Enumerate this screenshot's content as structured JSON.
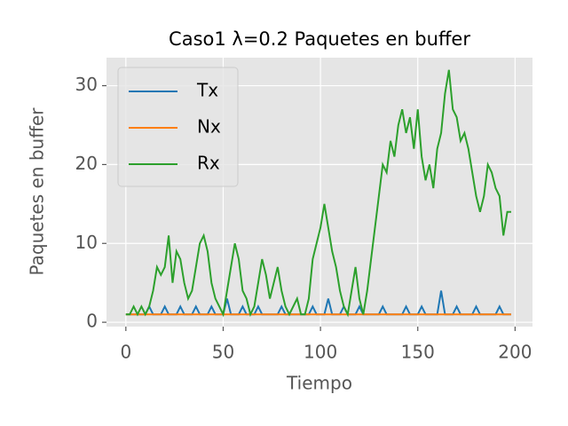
{
  "chart_data": {
    "type": "line",
    "title": "Caso1 λ=0.2 Paquetes en buffer",
    "xlabel": "Tiempo",
    "ylabel": "Paquetes en buffer",
    "x": [
      0,
      2,
      4,
      6,
      8,
      10,
      12,
      14,
      16,
      18,
      20,
      22,
      24,
      26,
      28,
      30,
      32,
      34,
      36,
      38,
      40,
      42,
      44,
      46,
      48,
      50,
      52,
      54,
      56,
      58,
      60,
      62,
      64,
      66,
      68,
      70,
      72,
      74,
      76,
      78,
      80,
      82,
      84,
      86,
      88,
      90,
      92,
      94,
      96,
      98,
      100,
      102,
      104,
      106,
      108,
      110,
      112,
      114,
      116,
      118,
      120,
      122,
      124,
      126,
      128,
      130,
      132,
      134,
      136,
      138,
      140,
      142,
      144,
      146,
      148,
      150,
      152,
      154,
      156,
      158,
      160,
      162,
      164,
      166,
      168,
      170,
      172,
      174,
      176,
      178,
      180,
      182,
      184,
      186,
      188,
      190,
      192,
      194,
      196,
      198
    ],
    "series": [
      {
        "name": "Tx",
        "color": "#1f77b4",
        "values": [
          1,
          1,
          1,
          1,
          1,
          1,
          2,
          1,
          1,
          1,
          2,
          1,
          1,
          1,
          2,
          1,
          1,
          1,
          2,
          1,
          1,
          1,
          2,
          1,
          1,
          1,
          3,
          1,
          1,
          1,
          2,
          1,
          1,
          1,
          2,
          1,
          1,
          1,
          1,
          1,
          2,
          1,
          1,
          1,
          1,
          1,
          1,
          1,
          2,
          1,
          1,
          1,
          3,
          1,
          1,
          1,
          2,
          1,
          1,
          1,
          2,
          1,
          1,
          1,
          1,
          1,
          2,
          1,
          1,
          1,
          1,
          1,
          2,
          1,
          1,
          1,
          2,
          1,
          1,
          1,
          1,
          4,
          1,
          1,
          1,
          2,
          1,
          1,
          1,
          1,
          2,
          1,
          1,
          1,
          1,
          1,
          2,
          1,
          1,
          1
        ]
      },
      {
        "name": "Nx",
        "color": "#ff7f0e",
        "values": [
          1,
          1,
          1,
          1,
          1,
          1,
          1,
          1,
          1,
          1,
          1,
          1,
          1,
          1,
          1,
          1,
          1,
          1,
          1,
          1,
          1,
          1,
          1,
          1,
          1,
          1,
          1,
          1,
          1,
          1,
          1,
          1,
          1,
          1,
          1,
          1,
          1,
          1,
          1,
          1,
          1,
          1,
          1,
          1,
          1,
          1,
          1,
          1,
          1,
          1,
          1,
          1,
          1,
          1,
          1,
          1,
          1,
          1,
          1,
          1,
          1,
          1,
          1,
          1,
          1,
          1,
          1,
          1,
          1,
          1,
          1,
          1,
          1,
          1,
          1,
          1,
          1,
          1,
          1,
          1,
          1,
          1,
          1,
          1,
          1,
          1,
          1,
          1,
          1,
          1,
          1,
          1,
          1,
          1,
          1,
          1,
          1,
          1,
          1,
          1
        ]
      },
      {
        "name": "Rx",
        "color": "#2ca02c",
        "values": [
          1,
          1,
          2,
          1,
          2,
          1,
          2,
          4,
          7,
          6,
          7,
          11,
          5,
          9,
          8,
          5,
          3,
          4,
          7,
          10,
          11,
          9,
          5,
          3,
          2,
          1,
          4,
          7,
          10,
          8,
          4,
          3,
          1,
          2,
          5,
          8,
          6,
          3,
          5,
          7,
          4,
          2,
          1,
          2,
          3,
          1,
          1,
          3,
          8,
          10,
          12,
          15,
          12,
          9,
          7,
          4,
          2,
          1,
          4,
          7,
          3,
          1,
          4,
          8,
          12,
          16,
          20,
          19,
          23,
          21,
          25,
          27,
          24,
          26,
          22,
          27,
          21,
          18,
          20,
          17,
          22,
          24,
          29,
          32,
          27,
          26,
          23,
          24,
          22,
          19,
          16,
          14,
          16,
          20,
          19,
          17,
          16,
          11,
          14,
          14
        ]
      }
    ],
    "xlim": [
      -9.95,
      208.95
    ],
    "ylim": [
      -0.55,
      33.55
    ],
    "xticks": [
      0,
      50,
      100,
      150,
      200
    ],
    "yticks": [
      0,
      10,
      20,
      30
    ],
    "grid": true,
    "legend": "upper left"
  }
}
